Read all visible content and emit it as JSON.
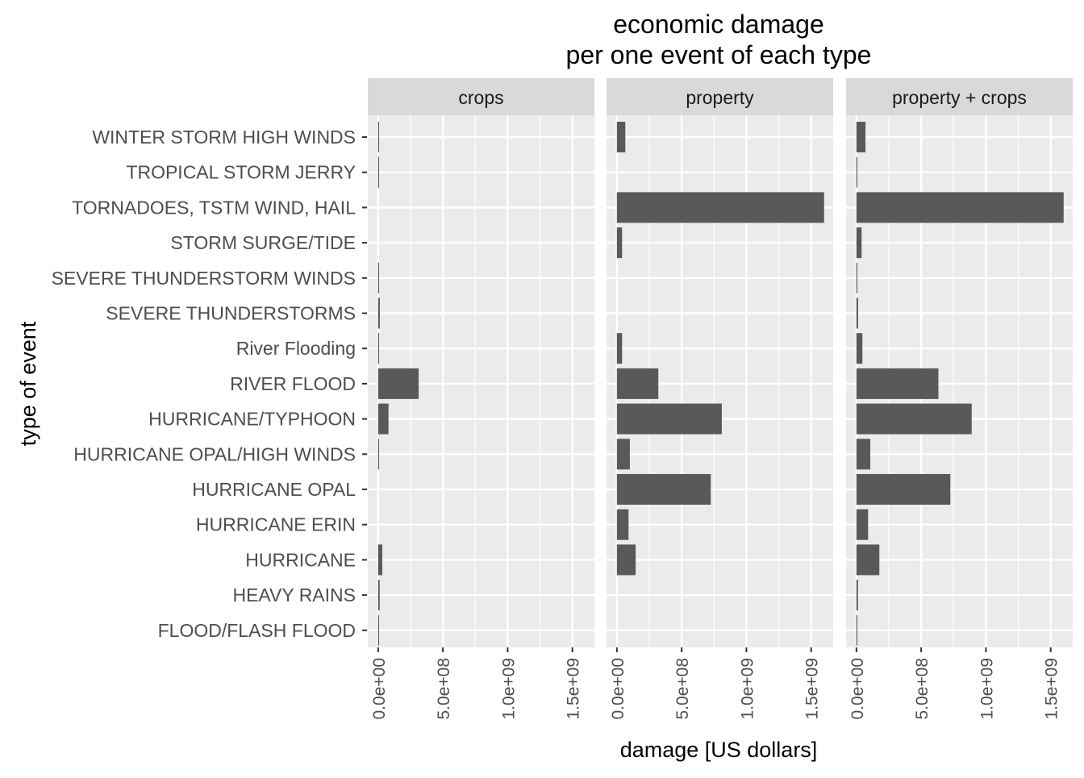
{
  "chart_data": {
    "type": "bar",
    "orientation": "horizontal",
    "title": [
      "economic damage",
      "per one event of each type"
    ],
    "xlabel": "damage [US dollars]",
    "ylabel": "type of event",
    "xlim": [
      -80000000,
      1670000000
    ],
    "x_ticks": [
      0,
      500000000,
      1000000000,
      1500000000
    ],
    "x_tick_labels": [
      "0.0e+00",
      "5.0e+08",
      "1.0e+09",
      "1.5e+09"
    ],
    "grid": true,
    "categories": [
      "WINTER STORM HIGH WINDS",
      "TROPICAL STORM JERRY",
      "TORNADOES, TSTM WIND, HAIL",
      "STORM SURGE/TIDE",
      "SEVERE THUNDERSTORM WINDS",
      "SEVERE THUNDERSTORMS",
      "River Flooding",
      "RIVER FLOOD",
      "HURRICANE/TYPHOON",
      "HURRICANE OPAL/HIGH WINDS",
      "HURRICANE OPAL",
      "HURRICANE ERIN",
      "HURRICANE",
      "HEAVY RAINS",
      "FLOOD/FLASH FLOOD"
    ],
    "facets": [
      {
        "name": "crops",
        "values": [
          5000000,
          6000000,
          0,
          0,
          7000000,
          13000000,
          6000000,
          313000000,
          80000000,
          7000000,
          0,
          0,
          32000000,
          12000000,
          5000000
        ]
      },
      {
        "name": "property",
        "values": [
          65000000,
          0,
          1600000000,
          40000000,
          0,
          0,
          40000000,
          320000000,
          810000000,
          100000000,
          725000000,
          90000000,
          145000000,
          0,
          0
        ]
      },
      {
        "name": "property + crops",
        "values": [
          70000000,
          6000000,
          1600000000,
          40000000,
          7000000,
          13000000,
          46000000,
          633000000,
          890000000,
          107000000,
          725000000,
          90000000,
          177000000,
          12000000,
          5000000
        ]
      }
    ],
    "colors": {
      "bar": "#595959",
      "panel": "#ebebeb",
      "strip": "#d9d9d9",
      "grid": "#ffffff",
      "tick_text": "#4d4d4d",
      "text": "#000000"
    }
  }
}
